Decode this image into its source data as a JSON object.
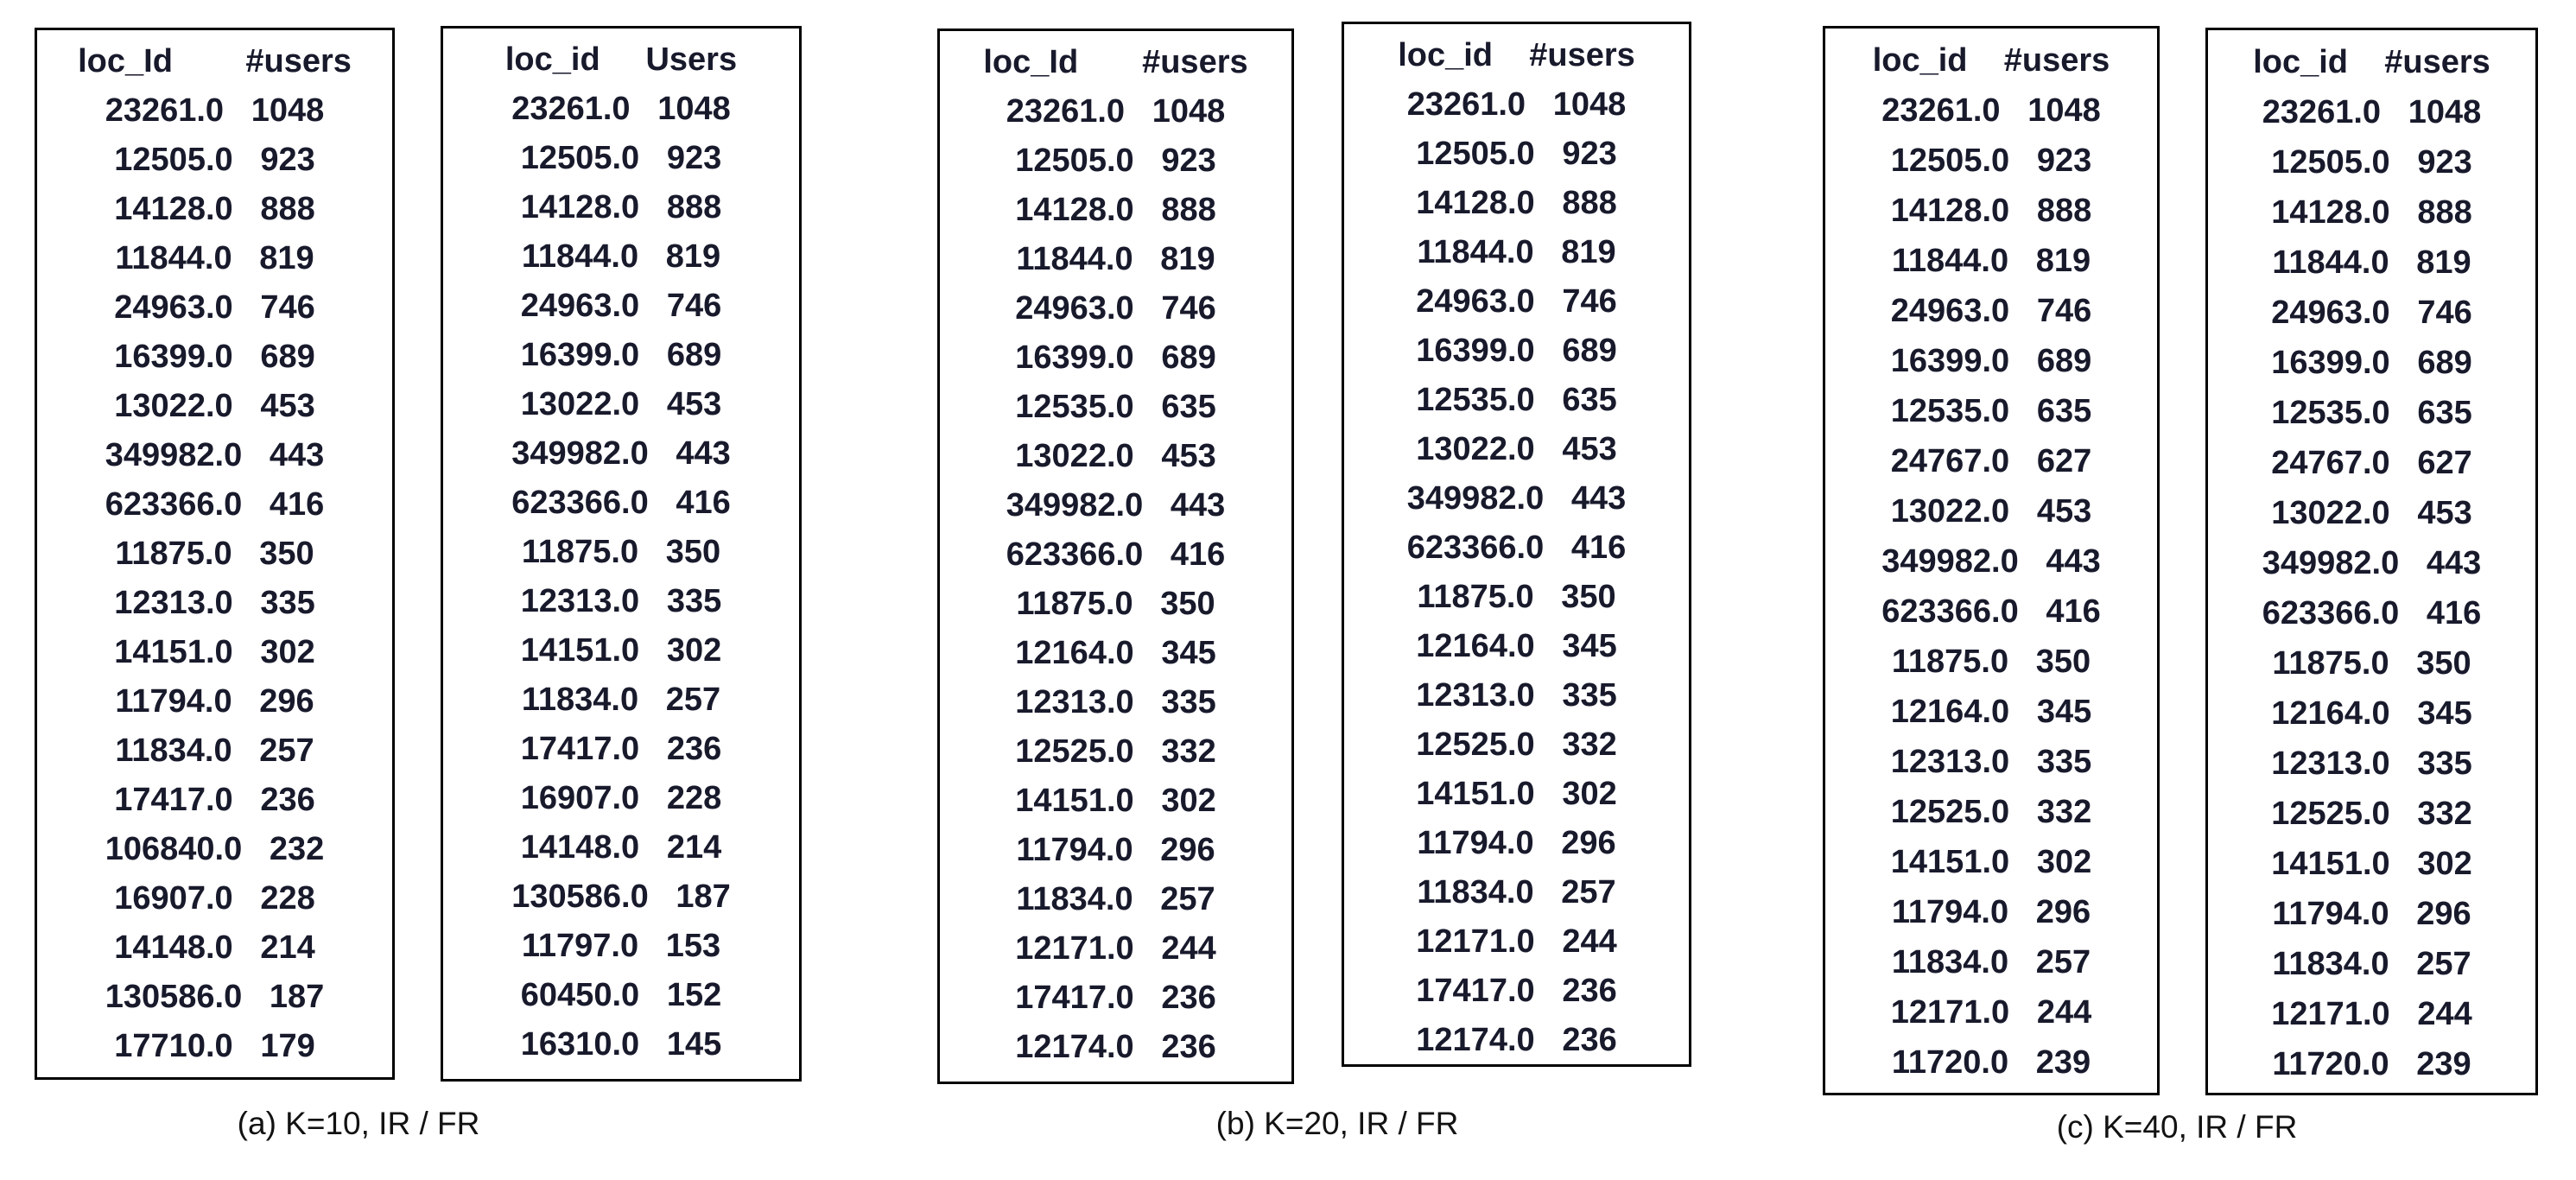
{
  "page": {
    "background": "#ffffff",
    "text_color": "#181a2c",
    "border_color": "#000000"
  },
  "captions": [
    {
      "label": "(a) K=10, IR / FR"
    },
    {
      "label": "(b) K=20, IR / FR"
    },
    {
      "label": "(c) K=40, IR / FR"
    }
  ],
  "row_gap": "   ",
  "tables": [
    {
      "name": "k10-left",
      "header": "loc_Id        #users",
      "columns": [
        "loc_Id",
        "#users"
      ],
      "rows": [
        [
          "23261.0",
          "1048"
        ],
        [
          "12505.0",
          "923"
        ],
        [
          "14128.0",
          "888"
        ],
        [
          "11844.0",
          "819"
        ],
        [
          "24963.0",
          "746"
        ],
        [
          "16399.0",
          "689"
        ],
        [
          "13022.0",
          "453"
        ],
        [
          "349982.0",
          "443"
        ],
        [
          "623366.0",
          "416"
        ],
        [
          "11875.0",
          "350"
        ],
        [
          "12313.0",
          "335"
        ],
        [
          "14151.0",
          "302"
        ],
        [
          "11794.0",
          "296"
        ],
        [
          "11834.0",
          "257"
        ],
        [
          "17417.0",
          "236"
        ],
        [
          "106840.0",
          "232"
        ],
        [
          "16907.0",
          "228"
        ],
        [
          "14148.0",
          "214"
        ],
        [
          "130586.0",
          "187"
        ],
        [
          "17710.0",
          "179"
        ]
      ]
    },
    {
      "name": "k10-right",
      "header": "loc_id     Users",
      "columns": [
        "loc_id",
        "Users"
      ],
      "rows": [
        [
          "23261.0",
          "1048"
        ],
        [
          "12505.0",
          "923"
        ],
        [
          "14128.0",
          "888"
        ],
        [
          "11844.0",
          "819"
        ],
        [
          "24963.0",
          "746"
        ],
        [
          "16399.0",
          "689"
        ],
        [
          "13022.0",
          "453"
        ],
        [
          "349982.0",
          "443"
        ],
        [
          "623366.0",
          "416"
        ],
        [
          "11875.0",
          "350"
        ],
        [
          "12313.0",
          "335"
        ],
        [
          "14151.0",
          "302"
        ],
        [
          "11834.0",
          "257"
        ],
        [
          "17417.0",
          "236"
        ],
        [
          "16907.0",
          "228"
        ],
        [
          "14148.0",
          "214"
        ],
        [
          "130586.0",
          "187"
        ],
        [
          "11797.0",
          "153"
        ],
        [
          "60450.0",
          "152"
        ],
        [
          "16310.0",
          "145"
        ]
      ]
    },
    {
      "name": "k20-left",
      "header": "loc_Id       #users",
      "columns": [
        "loc_Id",
        "#users"
      ],
      "rows": [
        [
          "23261.0",
          "1048"
        ],
        [
          "12505.0",
          "923"
        ],
        [
          "14128.0",
          "888"
        ],
        [
          "11844.0",
          "819"
        ],
        [
          "24963.0",
          "746"
        ],
        [
          "16399.0",
          "689"
        ],
        [
          "12535.0",
          "635"
        ],
        [
          "13022.0",
          "453"
        ],
        [
          "349982.0",
          "443"
        ],
        [
          "623366.0",
          "416"
        ],
        [
          "11875.0",
          "350"
        ],
        [
          "12164.0",
          "345"
        ],
        [
          "12313.0",
          "335"
        ],
        [
          "12525.0",
          "332"
        ],
        [
          "14151.0",
          "302"
        ],
        [
          "11794.0",
          "296"
        ],
        [
          "11834.0",
          "257"
        ],
        [
          "12171.0",
          "244"
        ],
        [
          "17417.0",
          "236"
        ],
        [
          "12174.0",
          "236"
        ]
      ]
    },
    {
      "name": "k20-right",
      "header": "loc_id    #users",
      "columns": [
        "loc_id",
        "#users"
      ],
      "rows": [
        [
          "23261.0",
          "1048"
        ],
        [
          "12505.0",
          "923"
        ],
        [
          "14128.0",
          "888"
        ],
        [
          "11844.0",
          "819"
        ],
        [
          "24963.0",
          "746"
        ],
        [
          "16399.0",
          "689"
        ],
        [
          "12535.0",
          "635"
        ],
        [
          "13022.0",
          "453"
        ],
        [
          "349982.0",
          "443"
        ],
        [
          "623366.0",
          "416"
        ],
        [
          "11875.0",
          "350"
        ],
        [
          "12164.0",
          "345"
        ],
        [
          "12313.0",
          "335"
        ],
        [
          "12525.0",
          "332"
        ],
        [
          "14151.0",
          "302"
        ],
        [
          "11794.0",
          "296"
        ],
        [
          "11834.0",
          "257"
        ],
        [
          "12171.0",
          "244"
        ],
        [
          "17417.0",
          "236"
        ],
        [
          "12174.0",
          "236"
        ]
      ]
    },
    {
      "name": "k40-left",
      "header": "loc_id    #users",
      "columns": [
        "loc_id",
        "#users"
      ],
      "rows": [
        [
          "23261.0",
          "1048"
        ],
        [
          "12505.0",
          "923"
        ],
        [
          "14128.0",
          "888"
        ],
        [
          "11844.0",
          "819"
        ],
        [
          "24963.0",
          "746"
        ],
        [
          "16399.0",
          "689"
        ],
        [
          "12535.0",
          "635"
        ],
        [
          "24767.0",
          "627"
        ],
        [
          "13022.0",
          "453"
        ],
        [
          "349982.0",
          "443"
        ],
        [
          "623366.0",
          "416"
        ],
        [
          "11875.0",
          "350"
        ],
        [
          "12164.0",
          "345"
        ],
        [
          "12313.0",
          "335"
        ],
        [
          "12525.0",
          "332"
        ],
        [
          "14151.0",
          "302"
        ],
        [
          "11794.0",
          "296"
        ],
        [
          "11834.0",
          "257"
        ],
        [
          "12171.0",
          "244"
        ],
        [
          "11720.0",
          "239"
        ]
      ]
    },
    {
      "name": "k40-right",
      "header": "loc_id    #users",
      "columns": [
        "loc_id",
        "#users"
      ],
      "rows": [
        [
          "23261.0",
          "1048"
        ],
        [
          "12505.0",
          "923"
        ],
        [
          "14128.0",
          "888"
        ],
        [
          "11844.0",
          "819"
        ],
        [
          "24963.0",
          "746"
        ],
        [
          "16399.0",
          "689"
        ],
        [
          "12535.0",
          "635"
        ],
        [
          "24767.0",
          "627"
        ],
        [
          "13022.0",
          "453"
        ],
        [
          "349982.0",
          "443"
        ],
        [
          "623366.0",
          "416"
        ],
        [
          "11875.0",
          "350"
        ],
        [
          "12164.0",
          "345"
        ],
        [
          "12313.0",
          "335"
        ],
        [
          "12525.0",
          "332"
        ],
        [
          "14151.0",
          "302"
        ],
        [
          "11794.0",
          "296"
        ],
        [
          "11834.0",
          "257"
        ],
        [
          "12171.0",
          "244"
        ],
        [
          "11720.0",
          "239"
        ]
      ]
    }
  ]
}
